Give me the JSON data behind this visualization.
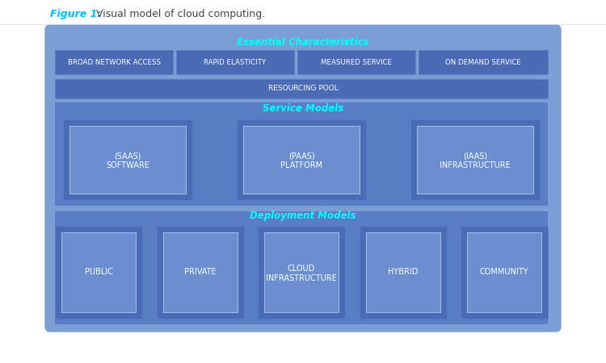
{
  "figure_title": "Figure 1:",
  "figure_subtitle": " Visual model of cloud computing.",
  "title_color": "#00BFFF",
  "subtitle_color": "#444444",
  "bg_color": "#ffffff",
  "outer_box_color": "#7B9FD4",
  "outer_box_edge_color": "#7B9FD4",
  "dark_row_color": "#4A6BB5",
  "dark_row_edge": "#5A7BC5",
  "medium_box_color": "#5A7EC5",
  "inner_white_box_color": "#6A8ED0",
  "inner_white_box_edge": "#A0BAE0",
  "section_title_color": "#00FFFF",
  "text_color": "#ffffff",
  "essential_chars_label": "Essential Characteristics",
  "service_models_label": "Service Models",
  "deployment_models_label": "Deployment Models",
  "resourcing_pool_label": "RESOURCING POOL",
  "essential_items": [
    "BROAD NETWORK ACCESS",
    "RAPID ELASTICITY",
    "MEASURED SERVICE",
    "ON DEMAND SERVICE"
  ],
  "service_items": [
    [
      "(SAAS)",
      "SOFTWARE"
    ],
    [
      "(PAAS)",
      "PLATFORM"
    ],
    [
      "(IAAS)",
      "INFRASTRUCTURE"
    ]
  ],
  "deployment_items": [
    "PUBLIC",
    "PRIVATE",
    [
      "CLOUD",
      "INFRASTRUCTURE"
    ],
    "HYBRID",
    "COMMUNITY"
  ]
}
